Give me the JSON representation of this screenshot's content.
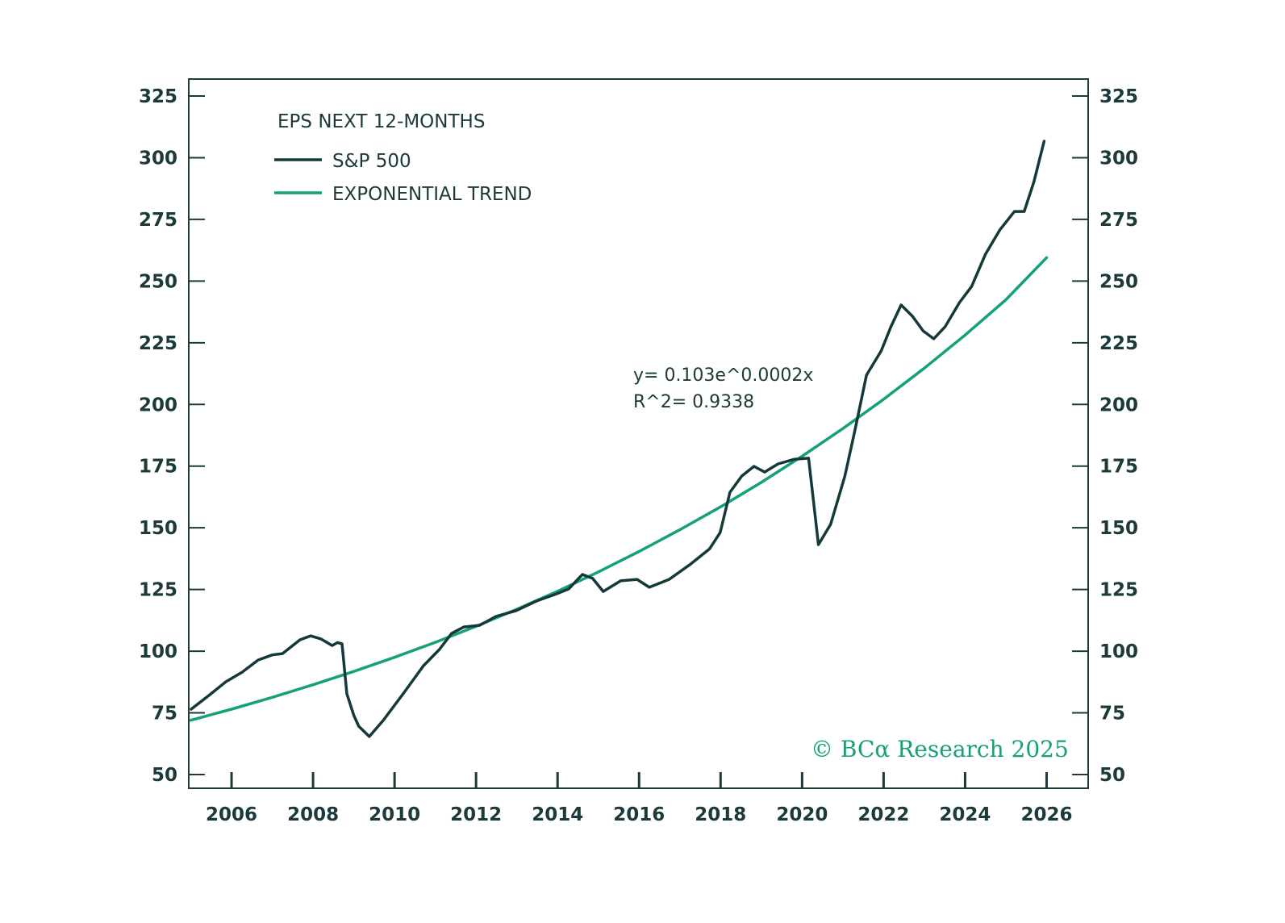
{
  "chart_data": {
    "type": "line",
    "title": "EPS NEXT 12-MONTHS",
    "xlabel": "",
    "ylabel": "",
    "xlim": [
      2004.95,
      2027.02
    ],
    "ylim": [
      50,
      325
    ],
    "x_ticks": [
      2006,
      2008,
      2010,
      2012,
      2014,
      2016,
      2018,
      2020,
      2022,
      2024,
      2026
    ],
    "x_tick_labels": [
      "2006",
      "2008",
      "2010",
      "2012",
      "2014",
      "2016",
      "2018",
      "2020",
      "2022",
      "2024",
      "2026"
    ],
    "y_ticks": [
      50,
      75,
      100,
      125,
      150,
      175,
      200,
      225,
      250,
      275,
      300,
      325
    ],
    "y_tick_labels": [
      "50",
      "75",
      "100",
      "125",
      "150",
      "175",
      "200",
      "225",
      "250",
      "275",
      "300",
      "325"
    ],
    "y_axis_sides": [
      "left",
      "right"
    ],
    "grid": false,
    "legend": {
      "placement": "top-left",
      "title": "EPS NEXT 12-MONTHS",
      "entries": [
        {
          "label": "S&P 500",
          "color": "#15393a"
        },
        {
          "label": "EXPONENTIAL TREND",
          "color": "#13a07b"
        }
      ]
    },
    "annotations": [
      {
        "text": "y= 0.103e^0.0002x",
        "x": 2015.9,
        "y": 193.5
      },
      {
        "text": "R^2= 0.9338",
        "x": 2015.9,
        "y": 182.5
      }
    ],
    "series": [
      {
        "name": "S&P 500",
        "color": "#15393a",
        "x": [
          2005.01,
          2005.4,
          2005.86,
          2006.26,
          2006.65,
          2007.0,
          2007.25,
          2007.68,
          2007.94,
          2008.2,
          2008.47,
          2008.6,
          2008.71,
          2008.83,
          2009.0,
          2009.12,
          2009.38,
          2009.72,
          2010.21,
          2010.71,
          2011.1,
          2011.4,
          2011.7,
          2012.09,
          2012.49,
          2012.98,
          2013.48,
          2013.97,
          2014.27,
          2014.61,
          2014.86,
          2015.12,
          2015.55,
          2015.95,
          2016.25,
          2016.74,
          2017.24,
          2017.73,
          2017.99,
          2018.23,
          2018.52,
          2018.82,
          2019.08,
          2019.41,
          2019.81,
          2020.16,
          2020.4,
          2020.7,
          2021.05,
          2021.29,
          2021.58,
          2021.94,
          2022.18,
          2022.43,
          2022.71,
          2022.97,
          2023.23,
          2023.51,
          2023.86,
          2024.16,
          2024.5,
          2024.85,
          2025.21,
          2025.45,
          2025.69,
          2025.94
        ],
        "values": [
          76.5,
          81.5,
          87.6,
          91.5,
          96.4,
          98.5,
          99.0,
          104.6,
          106.2,
          104.9,
          102.3,
          103.5,
          103.0,
          82.7,
          74.0,
          69.6,
          65.4,
          71.9,
          82.7,
          94.1,
          100.7,
          107.2,
          109.8,
          110.5,
          114.1,
          116.4,
          120.3,
          123.2,
          125.2,
          131.1,
          129.5,
          124.2,
          128.5,
          129.1,
          125.9,
          129.1,
          135.0,
          141.5,
          148.1,
          164.4,
          171.0,
          174.9,
          172.6,
          175.9,
          177.8,
          178.2,
          143.2,
          151.4,
          171.0,
          189.0,
          211.9,
          221.7,
          231.5,
          240.3,
          235.7,
          229.8,
          226.6,
          231.5,
          241.3,
          247.8,
          260.9,
          270.7,
          278.2,
          278.2,
          290.3,
          306.7
        ]
      },
      {
        "name": "EXPONENTIAL TREND",
        "color": "#13a07b",
        "x": [
          2005.0,
          2006.0,
          2007.0,
          2008.0,
          2009.0,
          2010.0,
          2011.0,
          2012.0,
          2013.0,
          2014.0,
          2015.0,
          2016.0,
          2017.0,
          2018.0,
          2019.0,
          2020.0,
          2021.0,
          2022.0,
          2023.0,
          2024.0,
          2025.0,
          2026.0
        ],
        "values": [
          72.0,
          76.5,
          81.3,
          86.4,
          91.8,
          97.5,
          103.6,
          110.1,
          117.0,
          124.3,
          132.1,
          140.4,
          149.2,
          158.5,
          168.4,
          179.0,
          190.2,
          202.1,
          214.7,
          228.1,
          242.4,
          259.5
        ]
      }
    ]
  },
  "footer": {
    "copyright": "© BCα Research 2025"
  }
}
